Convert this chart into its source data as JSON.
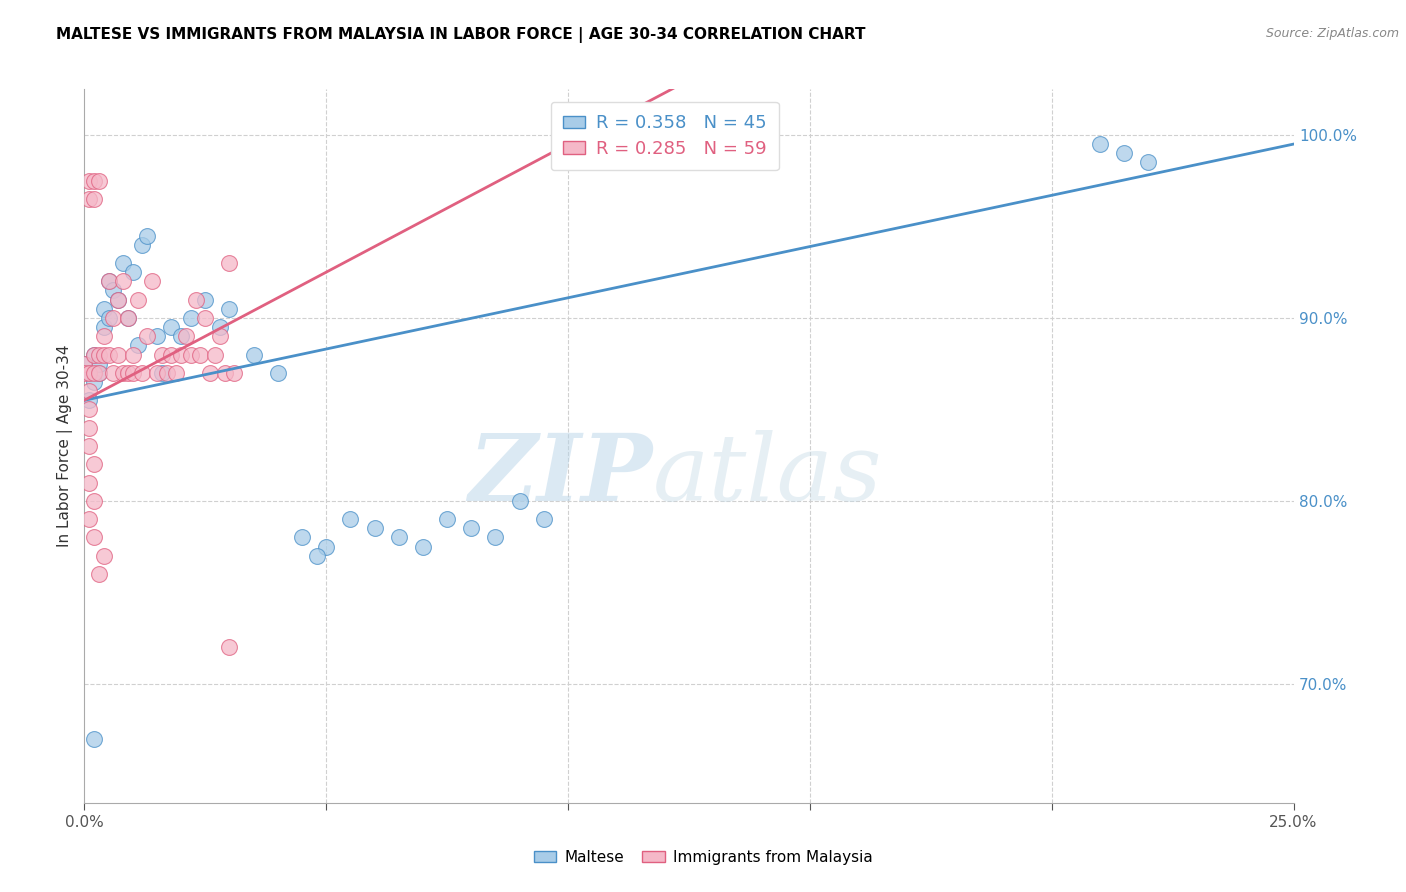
{
  "title": "MALTESE VS IMMIGRANTS FROM MALAYSIA IN LABOR FORCE | AGE 30-34 CORRELATION CHART",
  "source": "Source: ZipAtlas.com",
  "ylabel": "In Labor Force | Age 30-34",
  "xlim": [
    0.0,
    0.25
  ],
  "ylim": [
    0.635,
    1.025
  ],
  "ytick_labels": [
    "70.0%",
    "80.0%",
    "90.0%",
    "100.0%"
  ],
  "yticks": [
    0.7,
    0.8,
    0.9,
    1.0
  ],
  "blue_color": "#a8cce8",
  "pink_color": "#f5b8c8",
  "blue_line_color": "#4a90c8",
  "pink_line_color": "#e06080",
  "legend_blue_r": "R = 0.358",
  "legend_blue_n": "N = 45",
  "legend_pink_r": "R = 0.285",
  "legend_pink_n": "N = 59",
  "blue_scatter_x": [
    0.0,
    0.001,
    0.001,
    0.002,
    0.002,
    0.003,
    0.003,
    0.004,
    0.004,
    0.005,
    0.005,
    0.006,
    0.007,
    0.008,
    0.009,
    0.01,
    0.011,
    0.012,
    0.013,
    0.015,
    0.016,
    0.018,
    0.02,
    0.022,
    0.025,
    0.028,
    0.03,
    0.035,
    0.04,
    0.045,
    0.05,
    0.055,
    0.06,
    0.065,
    0.07,
    0.075,
    0.08,
    0.085,
    0.09,
    0.095,
    0.002,
    0.21,
    0.215,
    0.22,
    0.048
  ],
  "blue_scatter_y": [
    0.875,
    0.87,
    0.855,
    0.865,
    0.88,
    0.87,
    0.875,
    0.895,
    0.905,
    0.9,
    0.92,
    0.915,
    0.91,
    0.93,
    0.9,
    0.925,
    0.885,
    0.94,
    0.945,
    0.89,
    0.87,
    0.895,
    0.89,
    0.9,
    0.91,
    0.895,
    0.905,
    0.88,
    0.87,
    0.78,
    0.775,
    0.79,
    0.785,
    0.78,
    0.775,
    0.79,
    0.785,
    0.78,
    0.8,
    0.79,
    0.67,
    0.995,
    0.99,
    0.985,
    0.77
  ],
  "pink_scatter_x": [
    0.0,
    0.0,
    0.001,
    0.001,
    0.001,
    0.001,
    0.002,
    0.002,
    0.002,
    0.002,
    0.003,
    0.003,
    0.003,
    0.004,
    0.004,
    0.005,
    0.005,
    0.006,
    0.006,
    0.007,
    0.007,
    0.008,
    0.008,
    0.009,
    0.009,
    0.01,
    0.01,
    0.011,
    0.012,
    0.013,
    0.014,
    0.015,
    0.016,
    0.017,
    0.018,
    0.019,
    0.02,
    0.021,
    0.022,
    0.023,
    0.024,
    0.025,
    0.026,
    0.027,
    0.028,
    0.029,
    0.03,
    0.031,
    0.001,
    0.002,
    0.001,
    0.002,
    0.001,
    0.002,
    0.003,
    0.004,
    0.001,
    0.001,
    0.03
  ],
  "pink_scatter_y": [
    0.875,
    0.87,
    0.86,
    0.87,
    0.965,
    0.975,
    0.87,
    0.88,
    0.965,
    0.975,
    0.87,
    0.88,
    0.975,
    0.88,
    0.89,
    0.88,
    0.92,
    0.9,
    0.87,
    0.91,
    0.88,
    0.92,
    0.87,
    0.9,
    0.87,
    0.88,
    0.87,
    0.91,
    0.87,
    0.89,
    0.92,
    0.87,
    0.88,
    0.87,
    0.88,
    0.87,
    0.88,
    0.89,
    0.88,
    0.91,
    0.88,
    0.9,
    0.87,
    0.88,
    0.89,
    0.87,
    0.93,
    0.87,
    0.83,
    0.82,
    0.81,
    0.8,
    0.79,
    0.78,
    0.76,
    0.77,
    0.84,
    0.85,
    0.72
  ],
  "watermark_zip": "ZIP",
  "watermark_atlas": "atlas",
  "background_color": "#ffffff",
  "grid_color": "#d0d0d0"
}
